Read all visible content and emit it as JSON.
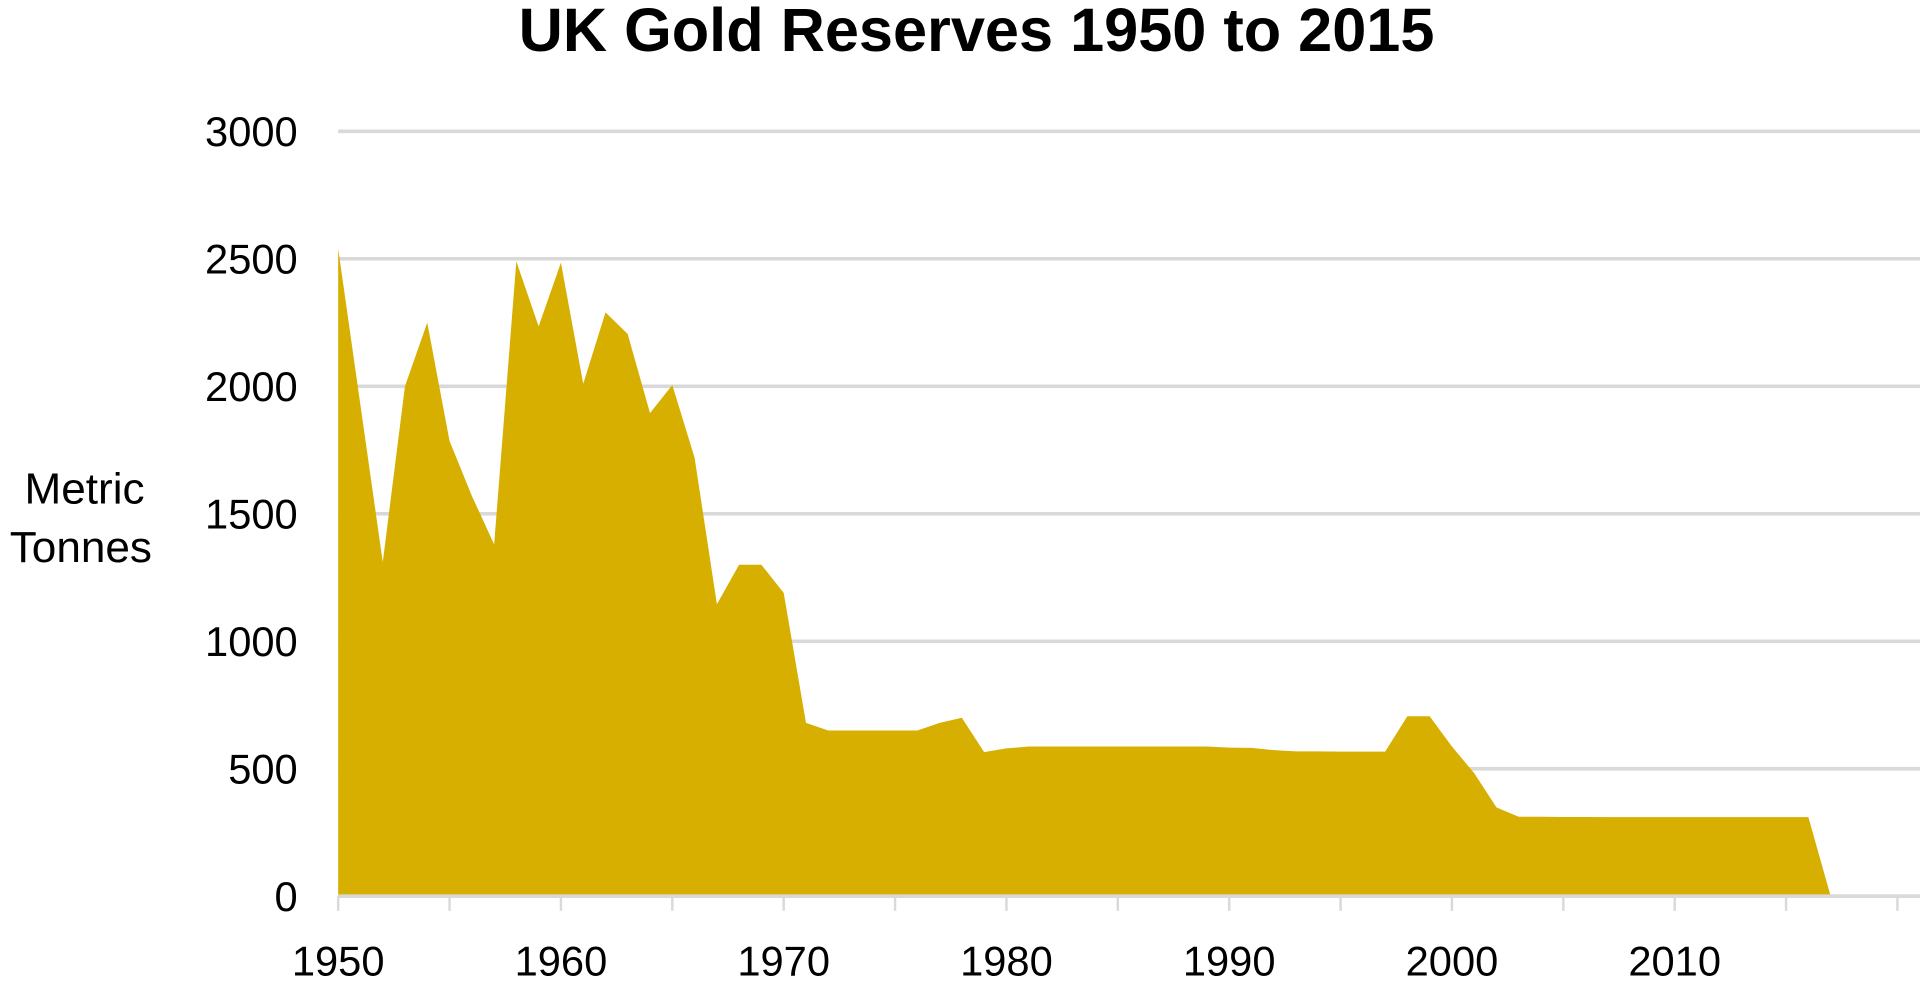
{
  "chart_data": {
    "type": "area",
    "title": "UK Gold Reserves 1950 to 2015",
    "xlabel": "",
    "ylabel_lines": [
      "Metric",
      "Tonnes"
    ],
    "xlim": [
      1950,
      2020
    ],
    "ylim": [
      0,
      3000
    ],
    "grid": true,
    "legend": "none",
    "colors": {
      "fill": "#d6af00",
      "grid": "#d9d9d9",
      "axis": "#d9d9d9"
    },
    "y_ticks": [
      0,
      500,
      1000,
      1500,
      2000,
      2500,
      3000
    ],
    "y_tick_labels": [
      "0",
      "500",
      "1000",
      "1500",
      "2000",
      "2500",
      "3000"
    ],
    "x_ticks_minor": [
      1950,
      1955,
      1960,
      1965,
      1970,
      1975,
      1980,
      1985,
      1990,
      1995,
      2000,
      2005,
      2010,
      2015,
      2020
    ],
    "x_tick_labels": [
      "1950",
      "1960",
      "1970",
      "1980",
      "1990",
      "2000",
      "2010"
    ],
    "x": [
      1950,
      1952,
      1953,
      1954,
      1955,
      1956,
      1957,
      1958,
      1959,
      1960,
      1961,
      1962,
      1963,
      1964,
      1965,
      1966,
      1967,
      1968,
      1969,
      1970,
      1971,
      1972,
      1973,
      1974,
      1975,
      1976,
      1977,
      1978,
      1979,
      1980,
      1981,
      1982,
      1983,
      1984,
      1985,
      1986,
      1987,
      1988,
      1989,
      1990,
      1991,
      1992,
      1993,
      1994,
      1995,
      1996,
      1997,
      1998,
      1999,
      2000,
      2001,
      2002,
      2003,
      2004,
      2005,
      2006,
      2007,
      2008,
      2009,
      2010,
      2011,
      2012,
      2013,
      2014,
      2015,
      2016,
      2017
    ],
    "values": [
      2540,
      1310,
      2000,
      2250,
      1785,
      1570,
      1380,
      2490,
      2235,
      2485,
      2010,
      2290,
      2205,
      1895,
      2005,
      1720,
      1145,
      1300,
      1300,
      1190,
      680,
      650,
      650,
      650,
      650,
      650,
      680,
      700,
      565,
      580,
      587,
      587,
      587,
      587,
      587,
      587,
      587,
      587,
      587,
      583,
      582,
      573,
      568,
      568,
      567,
      567,
      567,
      706,
      706,
      587,
      482,
      348,
      312,
      312,
      311,
      311,
      310,
      310,
      310,
      310,
      310,
      310,
      310,
      310,
      310,
      310,
      0
    ]
  }
}
